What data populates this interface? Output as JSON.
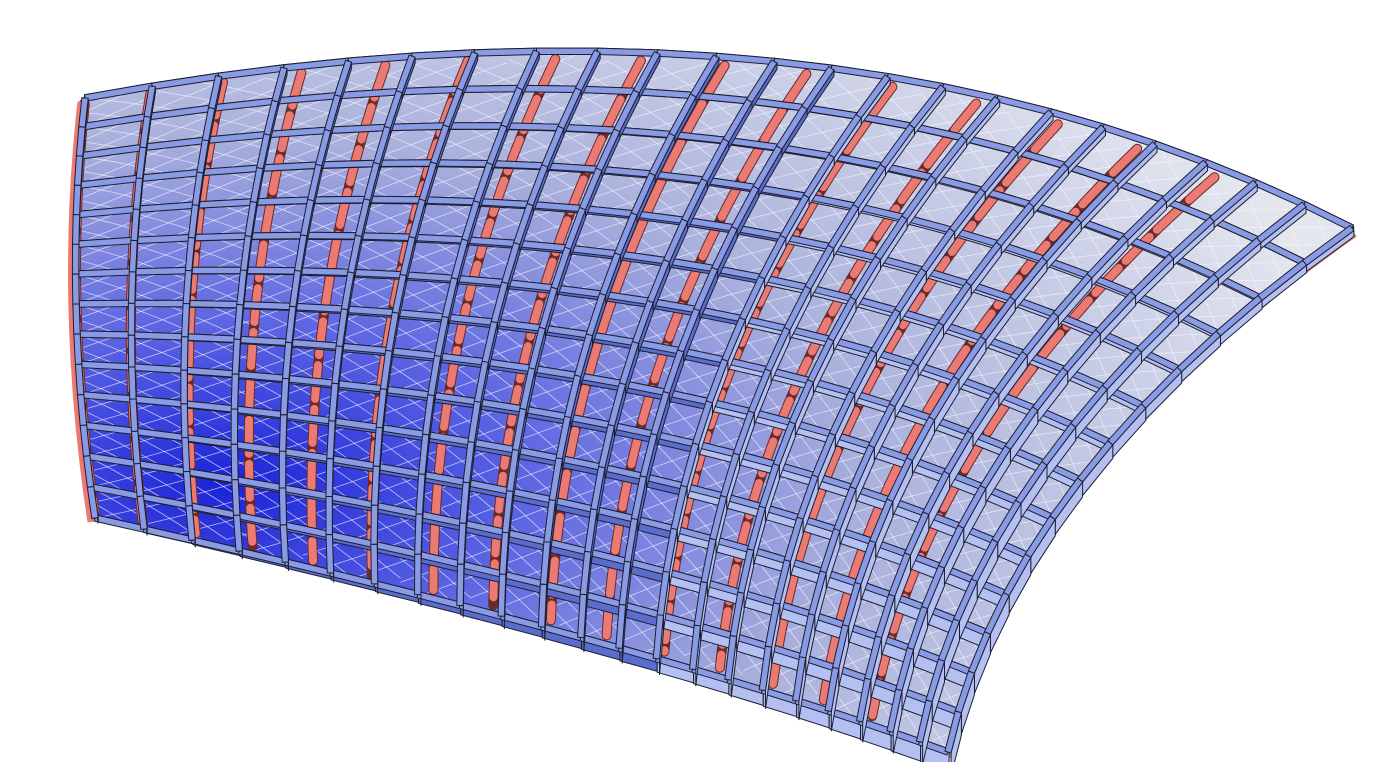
{
  "scene": {
    "background_color": "#ffffff",
    "subject": "gridshell-canopy",
    "colors": {
      "member_face": "#8a9be6",
      "member_face_light": "#b4c0f2",
      "member_face_dark": "#5a6ccc",
      "member_edge": "#1d1f2e",
      "glazing_light": "#e4e6ee",
      "glazing_mid": "#a9b0dc",
      "glazing_deep": "#1a22d8",
      "support_rib": "#ea7a72",
      "support_rib_edge": "#6a2a2a",
      "glazing_mullion": "#f4f6ff"
    },
    "icons": []
  }
}
